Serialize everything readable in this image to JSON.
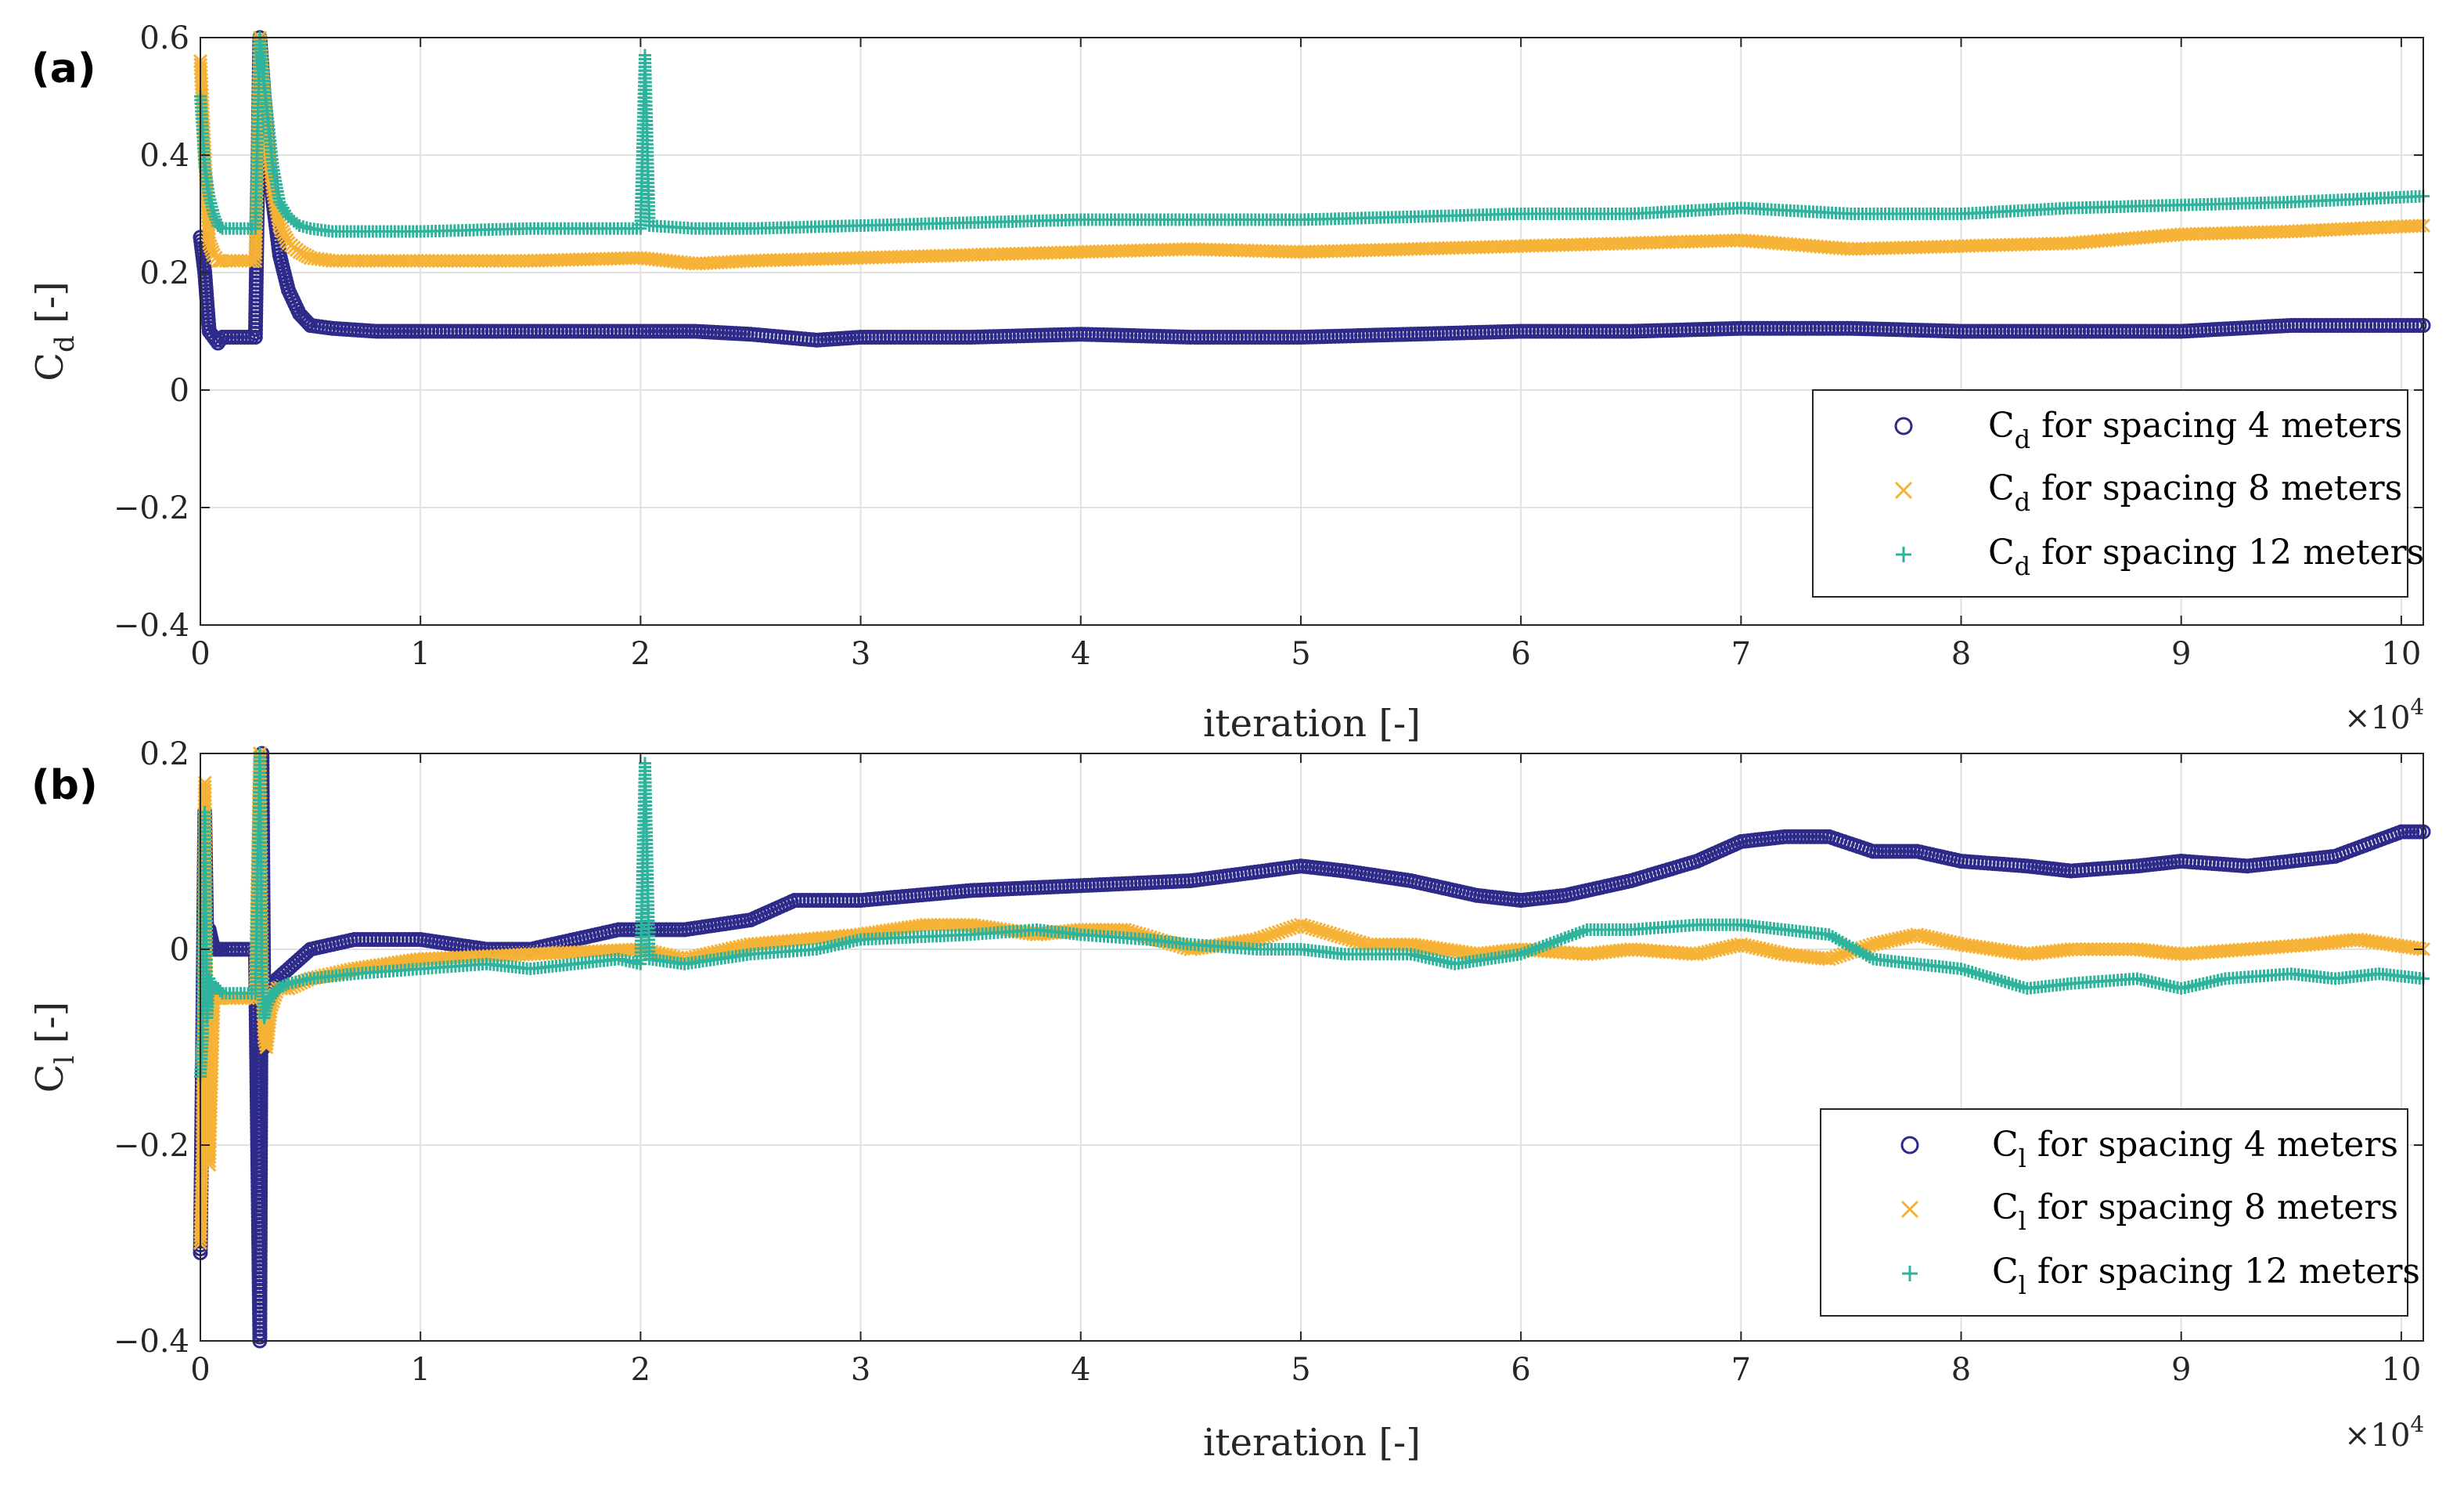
{
  "chart_data": [
    {
      "panel": "(a)",
      "type": "scatter",
      "xlabel": "iteration [-]",
      "x_exponent": "×10^4",
      "ylabel_main": "C",
      "ylabel_sub": "d",
      "ylabel_unit": " [-]",
      "xlim": [
        0,
        101000
      ],
      "ylim": [
        -0.4,
        0.6
      ],
      "xticks": [
        0,
        10000,
        20000,
        30000,
        40000,
        50000,
        60000,
        70000,
        80000,
        90000,
        100000
      ],
      "xtick_labels": [
        "0",
        "1",
        "2",
        "3",
        "4",
        "5",
        "6",
        "7",
        "8",
        "9",
        "10"
      ],
      "yticks": [
        -0.4,
        -0.2,
        0,
        0.2,
        0.4,
        0.6
      ],
      "ytick_labels": [
        "−0.4",
        "−0.2",
        "0",
        "0.2",
        "0.4",
        "0.6"
      ],
      "grid": true,
      "legend_position": "bottom-right",
      "series": [
        {
          "legend_main": "C",
          "legend_sub": "d",
          "legend_rest": " for spacing 4 meters",
          "marker": "o",
          "color": "#2e2a8a",
          "x": [
            0,
            200,
            400,
            600,
            800,
            1000,
            1500,
            2000,
            2500,
            2700,
            2900,
            3100,
            3300,
            3600,
            4000,
            4500,
            5000,
            6000,
            8000,
            10000,
            15000,
            20000,
            22500,
            25000,
            28000,
            30000,
            35000,
            40000,
            45000,
            50000,
            55000,
            60000,
            65000,
            70000,
            75000,
            80000,
            85000,
            90000,
            95000,
            101000
          ],
          "y": [
            0.26,
            0.2,
            0.1,
            0.09,
            0.08,
            0.09,
            0.09,
            0.09,
            0.09,
            0.6,
            0.5,
            0.4,
            0.32,
            0.23,
            0.17,
            0.13,
            0.11,
            0.105,
            0.1,
            0.1,
            0.1,
            0.1,
            0.1,
            0.095,
            0.085,
            0.09,
            0.09,
            0.095,
            0.09,
            0.09,
            0.095,
            0.1,
            0.1,
            0.105,
            0.105,
            0.1,
            0.1,
            0.1,
            0.11,
            0.11
          ]
        },
        {
          "legend_main": "C",
          "legend_sub": "d",
          "legend_rest": " for spacing 8 meters",
          "marker": "x",
          "color": "#f5b235",
          "x": [
            0,
            200,
            400,
            600,
            800,
            1000,
            1500,
            2000,
            2500,
            2700,
            2900,
            3100,
            3300,
            3600,
            4000,
            4500,
            5000,
            6000,
            8000,
            10000,
            15000,
            20000,
            22500,
            25000,
            30000,
            35000,
            40000,
            45000,
            50000,
            55000,
            60000,
            65000,
            70000,
            75000,
            80000,
            85000,
            90000,
            95000,
            101000
          ],
          "y": [
            0.56,
            0.4,
            0.25,
            0.23,
            0.22,
            0.22,
            0.22,
            0.22,
            0.22,
            0.6,
            0.5,
            0.41,
            0.34,
            0.28,
            0.25,
            0.235,
            0.225,
            0.22,
            0.22,
            0.22,
            0.22,
            0.225,
            0.215,
            0.22,
            0.225,
            0.23,
            0.235,
            0.24,
            0.235,
            0.24,
            0.245,
            0.25,
            0.255,
            0.24,
            0.245,
            0.25,
            0.265,
            0.27,
            0.28
          ]
        },
        {
          "legend_main": "C",
          "legend_sub": "d",
          "legend_rest": " for spacing 12 meters",
          "marker": "+",
          "color": "#2fb39c",
          "x": [
            0,
            200,
            400,
            600,
            800,
            1000,
            1500,
            2000,
            2500,
            2700,
            2900,
            3100,
            3300,
            3600,
            4000,
            4500,
            5000,
            6000,
            8000,
            10000,
            15000,
            20000,
            20200,
            20400,
            22500,
            25000,
            30000,
            35000,
            40000,
            45000,
            50000,
            55000,
            60000,
            65000,
            70000,
            75000,
            80000,
            85000,
            90000,
            95000,
            101000
          ],
          "y": [
            0.5,
            0.38,
            0.33,
            0.3,
            0.28,
            0.275,
            0.275,
            0.275,
            0.275,
            0.6,
            0.52,
            0.45,
            0.38,
            0.32,
            0.295,
            0.28,
            0.275,
            0.27,
            0.27,
            0.27,
            0.275,
            0.275,
            0.57,
            0.28,
            0.275,
            0.275,
            0.28,
            0.285,
            0.29,
            0.29,
            0.29,
            0.295,
            0.3,
            0.3,
            0.31,
            0.3,
            0.3,
            0.31,
            0.315,
            0.32,
            0.33
          ]
        }
      ]
    },
    {
      "panel": "(b)",
      "type": "scatter",
      "xlabel": "iteration [-]",
      "x_exponent": "×10^4",
      "ylabel_main": "C",
      "ylabel_sub": "l",
      "ylabel_unit": " [-]",
      "xlim": [
        0,
        101000
      ],
      "ylim": [
        -0.4,
        0.2
      ],
      "xticks": [
        0,
        10000,
        20000,
        30000,
        40000,
        50000,
        60000,
        70000,
        80000,
        90000,
        100000
      ],
      "xtick_labels": [
        "0",
        "1",
        "2",
        "3",
        "4",
        "5",
        "6",
        "7",
        "8",
        "9",
        "10"
      ],
      "yticks": [
        -0.4,
        -0.2,
        0,
        0.2
      ],
      "ytick_labels": [
        "−0.4",
        "−0.2",
        "0",
        "0.2"
      ],
      "grid": true,
      "legend_position": "bottom-right",
      "series": [
        {
          "legend_main": "C",
          "legend_sub": "l",
          "legend_rest": " for spacing 4 meters",
          "marker": "o",
          "color": "#2e2a8a",
          "x": [
            0,
            100,
            200,
            300,
            400,
            600,
            800,
            1000,
            1500,
            2000,
            2500,
            2700,
            2800,
            2900,
            3000,
            3200,
            3500,
            4000,
            5000,
            7000,
            10000,
            13000,
            15000,
            17000,
            19000,
            20000,
            22000,
            25000,
            27000,
            30000,
            35000,
            40000,
            45000,
            50000,
            52000,
            55000,
            58000,
            60000,
            62000,
            65000,
            68000,
            70000,
            72000,
            74000,
            76000,
            78000,
            80000,
            83000,
            85000,
            88000,
            90000,
            93000,
            97000,
            100000,
            101000
          ],
          "y": [
            -0.31,
            -0.1,
            0.14,
            0.0,
            0.02,
            0.0,
            0.0,
            0.0,
            0.0,
            0.0,
            0.0,
            -0.4,
            0.2,
            -0.1,
            -0.06,
            -0.04,
            -0.03,
            -0.02,
            0.0,
            0.01,
            0.01,
            0.0,
            0.0,
            0.01,
            0.02,
            0.02,
            0.02,
            0.03,
            0.05,
            0.05,
            0.06,
            0.065,
            0.07,
            0.085,
            0.08,
            0.07,
            0.055,
            0.05,
            0.055,
            0.07,
            0.09,
            0.11,
            0.115,
            0.115,
            0.1,
            0.1,
            0.09,
            0.085,
            0.08,
            0.085,
            0.09,
            0.085,
            0.095,
            0.12,
            0.12
          ]
        },
        {
          "legend_main": "C",
          "legend_sub": "l",
          "legend_rest": " for spacing 8 meters",
          "marker": "x",
          "color": "#f5b235",
          "x": [
            0,
            100,
            200,
            300,
            400,
            600,
            800,
            1000,
            1500,
            2000,
            2500,
            2700,
            2800,
            2900,
            3000,
            3200,
            3500,
            4000,
            5000,
            7000,
            10000,
            15000,
            20000,
            22000,
            25000,
            30000,
            33000,
            35000,
            38000,
            40000,
            42000,
            45000,
            48000,
            50000,
            53000,
            55000,
            58000,
            60000,
            63000,
            65000,
            68000,
            70000,
            72000,
            74000,
            76000,
            78000,
            80000,
            83000,
            85000,
            88000,
            90000,
            93000,
            96000,
            98000,
            101000
          ],
          "y": [
            -0.3,
            -0.2,
            0.17,
            -0.1,
            -0.22,
            -0.05,
            -0.05,
            -0.05,
            -0.05,
            -0.05,
            -0.05,
            0.2,
            -0.02,
            -0.09,
            -0.1,
            -0.06,
            -0.04,
            -0.04,
            -0.03,
            -0.02,
            -0.01,
            -0.005,
            0.0,
            -0.01,
            0.005,
            0.015,
            0.025,
            0.025,
            0.015,
            0.02,
            0.02,
            0.0,
            0.01,
            0.025,
            0.005,
            0.005,
            -0.005,
            0.0,
            -0.005,
            0.0,
            -0.005,
            0.005,
            -0.005,
            -0.01,
            0.005,
            0.015,
            0.005,
            -0.005,
            0.0,
            0.0,
            -0.005,
            0.0,
            0.005,
            0.01,
            0.0
          ]
        },
        {
          "legend_main": "C",
          "legend_sub": "l",
          "legend_rest": " for spacing 12 meters",
          "marker": "+",
          "color": "#2fb39c",
          "x": [
            0,
            100,
            200,
            300,
            400,
            600,
            800,
            1000,
            1500,
            2000,
            2500,
            2700,
            2800,
            2900,
            3000,
            3200,
            3500,
            4000,
            5000,
            7000,
            10000,
            13000,
            15000,
            17000,
            19000,
            20000,
            20200,
            20400,
            22000,
            25000,
            28000,
            30000,
            35000,
            38000,
            40000,
            43000,
            45000,
            48000,
            50000,
            52000,
            55000,
            57000,
            60000,
            63000,
            65000,
            68000,
            70000,
            72000,
            74000,
            76000,
            78000,
            80000,
            83000,
            85000,
            88000,
            90000,
            92000,
            95000,
            97000,
            99000,
            101000
          ],
          "y": [
            -0.13,
            -0.09,
            0.14,
            -0.07,
            -0.03,
            -0.04,
            -0.04,
            -0.045,
            -0.045,
            -0.045,
            -0.045,
            0.2,
            -0.03,
            -0.07,
            -0.06,
            -0.05,
            -0.04,
            -0.035,
            -0.03,
            -0.025,
            -0.02,
            -0.015,
            -0.02,
            -0.015,
            -0.01,
            -0.015,
            0.19,
            -0.01,
            -0.015,
            -0.005,
            0.0,
            0.01,
            0.015,
            0.02,
            0.015,
            0.01,
            0.005,
            0.0,
            0.0,
            -0.005,
            -0.005,
            -0.015,
            -0.005,
            0.02,
            0.02,
            0.025,
            0.025,
            0.02,
            0.015,
            -0.01,
            -0.015,
            -0.02,
            -0.04,
            -0.035,
            -0.03,
            -0.04,
            -0.03,
            -0.025,
            -0.03,
            -0.025,
            -0.03
          ]
        }
      ]
    }
  ]
}
